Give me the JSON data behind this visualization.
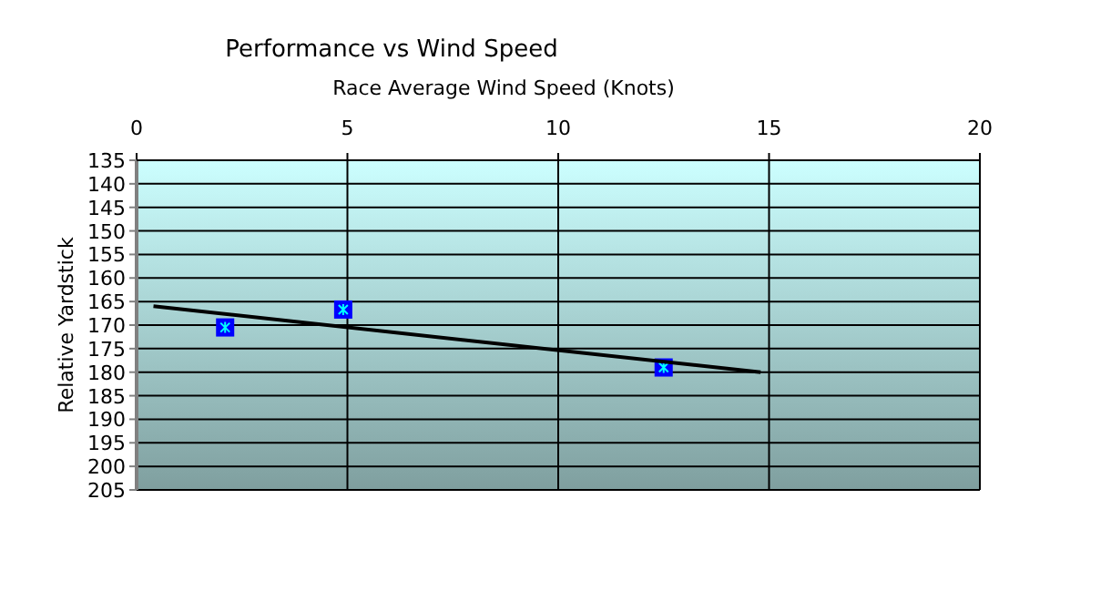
{
  "chart_data": {
    "type": "scatter",
    "title": "Performance vs Wind Speed",
    "xlabel": "Race Average Wind Speed (Knots)",
    "ylabel": "Relative Yardstick",
    "xlim": [
      0,
      20
    ],
    "xticks": [
      0,
      5,
      10,
      15,
      20
    ],
    "ylim": [
      205,
      135
    ],
    "yticks": [
      135,
      140,
      145,
      150,
      155,
      160,
      165,
      170,
      175,
      180,
      185,
      190,
      195,
      200,
      205
    ],
    "grid": true,
    "series": [
      {
        "marker": "square",
        "color": "#0000ff",
        "x": [
          2.1,
          4.9,
          12.5
        ],
        "values": [
          170.5,
          166.7,
          179
        ]
      },
      {
        "type": "line",
        "marker": "none",
        "color": "#000000",
        "x": [
          0.4,
          14.8
        ],
        "values": [
          166,
          180
        ]
      }
    ]
  }
}
